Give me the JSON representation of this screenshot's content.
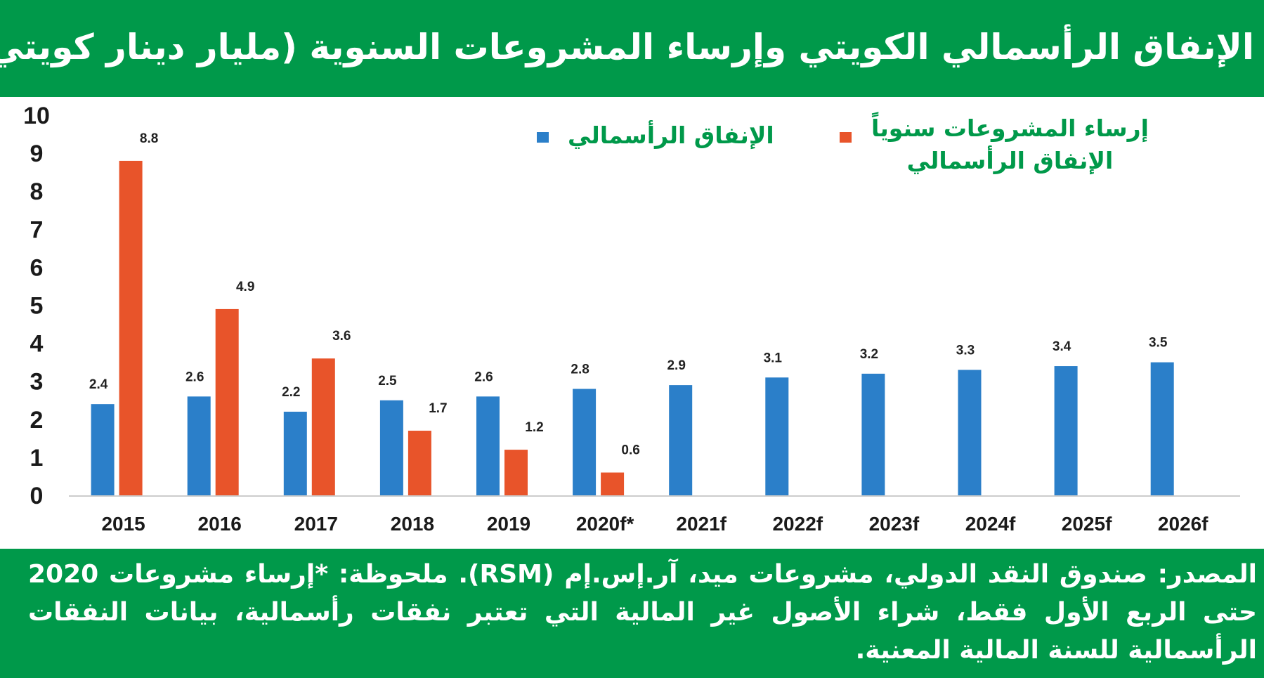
{
  "title": "الإنفاق الرأسمالي الكويتي وإرساء المشروعات السنوية (مليار دينار كويتي)",
  "footer": "المصدر: صندوق النقد الدولي، مشروعات ميد، آر.إس.إم (RSM). ملحوظة: *إرساء مشروعات 2020 حتى الربع الأول فقط، شراء الأصول غير المالية التي تعتبر نفقات رأسمالية، بيانات النفقات الرأسمالية للسنة المالية المعنية.",
  "colors": {
    "green": "#00994a",
    "blue": "#2b7fc9",
    "orange": "#e8542a"
  },
  "chart_data": {
    "type": "bar",
    "title": "الإنفاق الرأسمالي الكويتي وإرساء المشروعات السنوية (مليار دينار كويتي)",
    "categories": [
      "2015",
      "2016",
      "2017",
      "2018",
      "2019",
      "2020f*",
      "2021f",
      "2022f",
      "2023f",
      "2024f",
      "2025f",
      "2026f"
    ],
    "series": [
      {
        "name": "الإنفاق الرأسمالي",
        "color": "#2b7fc9",
        "values": [
          2.4,
          2.6,
          2.2,
          2.5,
          2.6,
          2.8,
          2.9,
          3.1,
          3.2,
          3.3,
          3.4,
          3.5
        ]
      },
      {
        "name": "إرساء المشروعات سنوياً الإنفاق الرأسمالي",
        "name_lines": [
          "إرساء المشروعات سنوياً",
          "الإنفاق الرأسمالي"
        ],
        "color": "#e8542a",
        "values": [
          8.8,
          4.9,
          3.6,
          1.7,
          1.2,
          0.6,
          null,
          null,
          null,
          null,
          null,
          null
        ]
      }
    ],
    "yticks": [
      "0",
      "1",
      "2",
      "3",
      "4",
      "5",
      "6",
      "7",
      "8",
      "9",
      "10"
    ],
    "ylim": [
      0,
      10
    ],
    "xlabel": "",
    "ylabel": "",
    "grid": false,
    "legend": "top-right"
  }
}
